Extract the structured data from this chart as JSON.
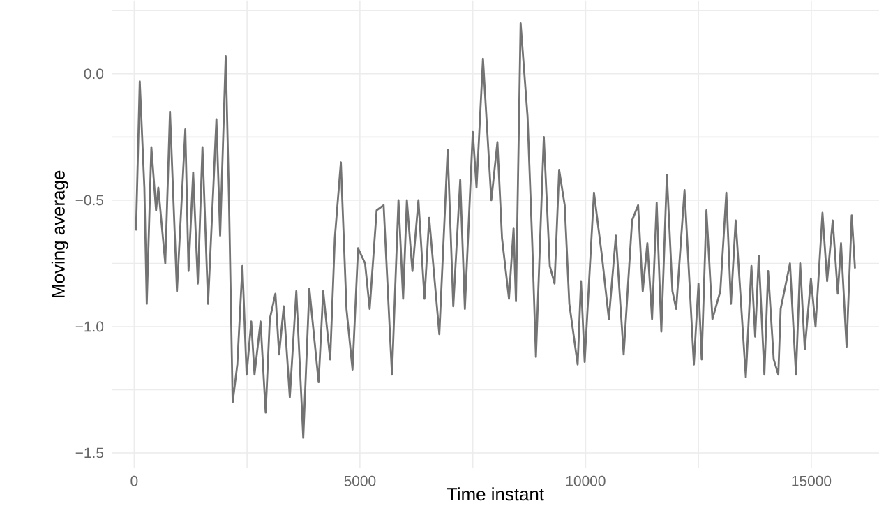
{
  "chart_data": {
    "type": "line",
    "xlabel": "Time instant",
    "ylabel": "Moving average",
    "grid": true,
    "marker": "none",
    "line_style": "solid",
    "xlim": [
      -500,
      16500
    ],
    "ylim": [
      -1.56,
      0.29
    ],
    "xticks": [
      0,
      {
        "value": 2500,
        "label": null
      },
      5000,
      {
        "value": 7500,
        "label": null
      },
      10000,
      {
        "value": 12500,
        "label": null
      },
      15000
    ],
    "yticks": [
      {
        "value": -1.5,
        "label": "−1.5"
      },
      {
        "value": -1.25,
        "label": null
      },
      {
        "value": -1.0,
        "label": "−1.0"
      },
      {
        "value": -0.75,
        "label": null
      },
      {
        "value": -0.5,
        "label": "−0.5"
      },
      {
        "value": -0.25,
        "label": null
      },
      {
        "value": 0.0,
        "label": "0.0"
      },
      {
        "value": 0.25,
        "label": null
      }
    ],
    "series": [
      {
        "color": "#737373",
        "x": [
          40,
          123,
          225,
          278,
          380,
          484,
          534,
          688,
          793,
          947,
          1132,
          1204,
          1306,
          1410,
          1512,
          1636,
          1821,
          1904,
          2027,
          2099,
          2181,
          2284,
          2397,
          2490,
          2593,
          2665,
          2799,
          2912,
          3004,
          3128,
          3210,
          3313,
          3447,
          3591,
          3745,
          3880,
          4085,
          4187,
          4341,
          4444,
          4578,
          4702,
          4836,
          4959,
          5114,
          5216,
          5370,
          5525,
          5710,
          5854,
          5957,
          6040,
          6163,
          6296,
          6430,
          6534,
          6759,
          6944,
          7068,
          7222,
          7325,
          7500,
          7583,
          7726,
          7911,
          8046,
          8148,
          8302,
          8404,
          8457,
          8560,
          8714,
          8818,
          8899,
          9074,
          9207,
          9312,
          9414,
          9537,
          9639,
          9824,
          9898,
          9979,
          10185,
          10361,
          10515,
          10670,
          10843,
          11029,
          11163,
          11265,
          11368,
          11472,
          11574,
          11677,
          11800,
          11923,
          12006,
          12191,
          12398,
          12500,
          12571,
          12676,
          12809,
          12984,
          13117,
          13219,
          13324,
          13549,
          13673,
          13756,
          13836,
          13960,
          14043,
          14167,
          14269,
          14321,
          14527,
          14660,
          14753,
          14855,
          14991,
          15093,
          15247,
          15350,
          15474,
          15586,
          15658,
          15781,
          15895,
          15967
        ],
        "values": [
          -0.62,
          -0.03,
          -0.45,
          -0.91,
          -0.29,
          -0.54,
          -0.45,
          -0.75,
          -0.15,
          -0.86,
          -0.22,
          -0.78,
          -0.39,
          -0.83,
          -0.29,
          -0.91,
          -0.18,
          -0.64,
          0.07,
          -0.49,
          -1.3,
          -1.15,
          -0.76,
          -1.19,
          -0.98,
          -1.19,
          -0.98,
          -1.34,
          -0.97,
          -0.87,
          -1.11,
          -0.92,
          -1.28,
          -0.86,
          -1.44,
          -0.85,
          -1.22,
          -0.86,
          -1.13,
          -0.65,
          -0.35,
          -0.93,
          -1.17,
          -0.69,
          -0.75,
          -0.93,
          -0.54,
          -0.52,
          -1.19,
          -0.5,
          -0.89,
          -0.5,
          -0.78,
          -0.5,
          -0.89,
          -0.57,
          -1.03,
          -0.3,
          -0.92,
          -0.42,
          -0.93,
          -0.23,
          -0.45,
          0.06,
          -0.5,
          -0.27,
          -0.65,
          -0.89,
          -0.61,
          -0.9,
          0.2,
          -0.17,
          -0.67,
          -1.12,
          -0.25,
          -0.76,
          -0.83,
          -0.38,
          -0.52,
          -0.91,
          -1.15,
          -0.82,
          -1.14,
          -0.47,
          -0.72,
          -0.97,
          -0.64,
          -1.11,
          -0.58,
          -0.52,
          -0.86,
          -0.67,
          -0.97,
          -0.51,
          -1.02,
          -0.4,
          -0.86,
          -0.93,
          -0.46,
          -1.15,
          -0.83,
          -1.13,
          -0.54,
          -0.97,
          -0.86,
          -0.47,
          -0.91,
          -0.58,
          -1.2,
          -0.76,
          -1.04,
          -0.72,
          -1.19,
          -0.78,
          -1.13,
          -1.19,
          -0.93,
          -0.75,
          -1.19,
          -0.75,
          -1.09,
          -0.81,
          -1.0,
          -0.55,
          -0.82,
          -0.58,
          -0.87,
          -0.67,
          -1.08,
          -0.56,
          -0.77
        ]
      }
    ]
  }
}
